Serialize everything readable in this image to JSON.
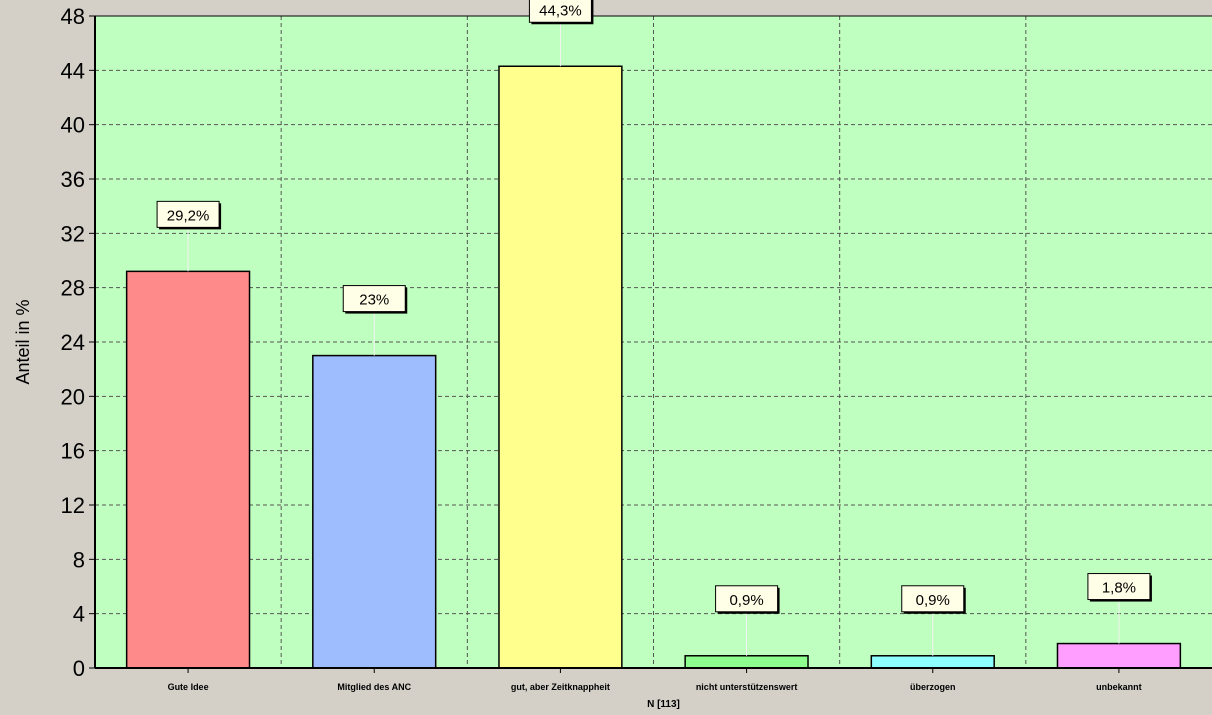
{
  "chart_data": {
    "type": "bar",
    "title": "",
    "ylabel": "Anteil in %",
    "xlabel": "N [113]",
    "ylim": [
      0,
      48
    ],
    "yticks": [
      0,
      4,
      8,
      12,
      16,
      20,
      24,
      28,
      32,
      36,
      40,
      44,
      48
    ],
    "grid": true,
    "categories": [
      "Gute Idee",
      "Mitglied des ANC",
      "gut, aber Zeitknappheit",
      "nicht unterstützenswert",
      "überzogen",
      "unbekannt"
    ],
    "values": [
      29.2,
      23,
      44.3,
      0.9,
      0.9,
      1.8
    ],
    "data_labels": [
      "29,2%",
      "23%",
      "44,3%",
      "0,9%",
      "0,9%",
      "1,8%"
    ],
    "colors": [
      "#ff8a8a",
      "#9ebdff",
      "#ffff8e",
      "#8eff8e",
      "#8effff",
      "#ff9eff"
    ],
    "plot_background": "#bfffbf",
    "frame_background": "#d4d0c8"
  }
}
